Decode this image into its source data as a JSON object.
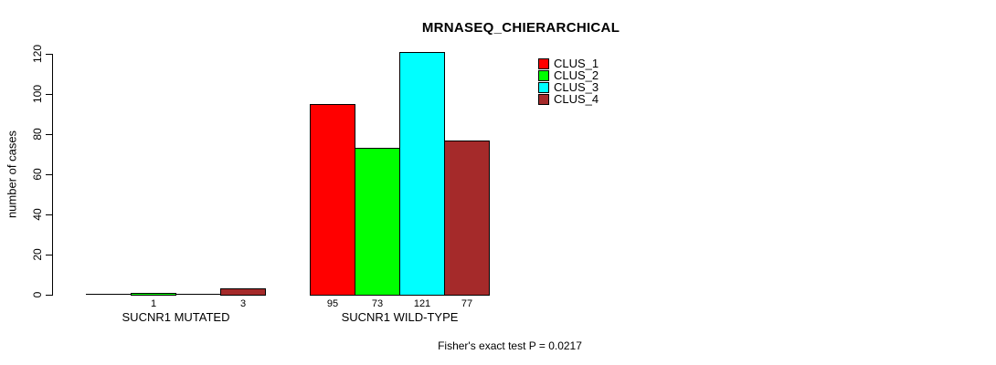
{
  "chart_data": {
    "type": "bar",
    "title": "MRNASEQ_CHIERARCHICAL",
    "ylabel": "number of cases",
    "xlabel": "",
    "categories": [
      "SUCNR1 MUTATED",
      "SUCNR1 WILD-TYPE"
    ],
    "series": [
      {
        "name": "CLUS_1",
        "color": "#ff0000",
        "values": [
          0,
          95
        ]
      },
      {
        "name": "CLUS_2",
        "color": "#00ff00",
        "values": [
          1,
          73
        ]
      },
      {
        "name": "CLUS_3",
        "color": "#00ffff",
        "values": [
          0,
          121
        ]
      },
      {
        "name": "CLUS_4",
        "color": "#a52a2a",
        "values": [
          3,
          77
        ]
      }
    ],
    "bar_value_labels": [
      [
        "",
        "1",
        "",
        "3"
      ],
      [
        "95",
        "73",
        "121",
        "77"
      ]
    ],
    "yticks": [
      0,
      20,
      40,
      60,
      80,
      100,
      120
    ],
    "ylim": [
      0,
      120
    ],
    "grid": false,
    "legend_position": "top-right",
    "annotation": "Fisher's exact test P = 0.0217"
  }
}
